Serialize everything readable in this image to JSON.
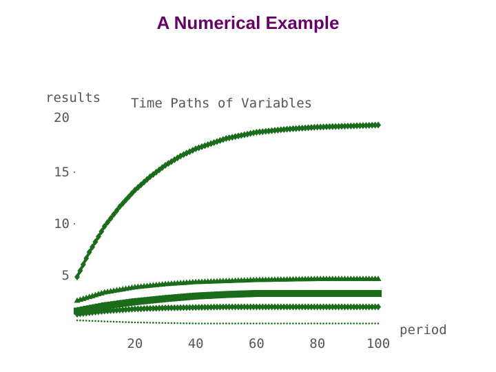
{
  "slide": {
    "title": "A Numerical Example"
  },
  "colors": {
    "title": "#660066",
    "series": "#1a6b1a",
    "text": "#555555"
  },
  "chart_data": {
    "type": "line",
    "title": "Time Paths of Variables",
    "ylabel_line1": "results",
    "ylabel_line2": "20",
    "xlabel": "period",
    "xlim": [
      1,
      100
    ],
    "ylim": [
      0,
      20
    ],
    "x_ticks": [
      20,
      40,
      60,
      80,
      100
    ],
    "y_ticks": [
      5,
      10,
      15
    ],
    "grid": false,
    "legend": "none",
    "series": [
      {
        "marker": "diamond",
        "x": [
          1,
          5,
          10,
          15,
          20,
          25,
          30,
          35,
          40,
          45,
          50,
          60,
          70,
          80,
          90,
          100
        ],
        "y": [
          4.8,
          7.2,
          9.7,
          11.6,
          13.2,
          14.5,
          15.6,
          16.5,
          17.2,
          17.7,
          18.2,
          18.8,
          19.1,
          19.3,
          19.4,
          19.5
        ]
      },
      {
        "marker": "triangle",
        "x": [
          1,
          10,
          20,
          30,
          40,
          50,
          60,
          70,
          80,
          90,
          100
        ],
        "y": [
          2.5,
          3.3,
          3.8,
          4.1,
          4.3,
          4.4,
          4.5,
          4.55,
          4.6,
          4.6,
          4.6
        ]
      },
      {
        "marker": "square",
        "x": [
          1,
          10,
          20,
          30,
          40,
          50,
          60,
          70,
          80,
          90,
          100
        ],
        "y": [
          1.5,
          2.0,
          2.4,
          2.7,
          2.95,
          3.1,
          3.2,
          3.2,
          3.2,
          3.2,
          3.2
        ]
      },
      {
        "marker": "diamond",
        "x": [
          1,
          10,
          20,
          30,
          40,
          50,
          60,
          70,
          80,
          90,
          100
        ],
        "y": [
          1.2,
          1.5,
          1.7,
          1.8,
          1.85,
          1.9,
          1.9,
          1.9,
          1.9,
          1.9,
          1.9
        ]
      },
      {
        "marker": "dot",
        "x": [
          1,
          10,
          20,
          30,
          40,
          50,
          60,
          70,
          80,
          90,
          100
        ],
        "y": [
          0.6,
          0.5,
          0.4,
          0.35,
          0.3,
          0.3,
          0.3,
          0.3,
          0.3,
          0.3,
          0.3
        ]
      }
    ]
  }
}
